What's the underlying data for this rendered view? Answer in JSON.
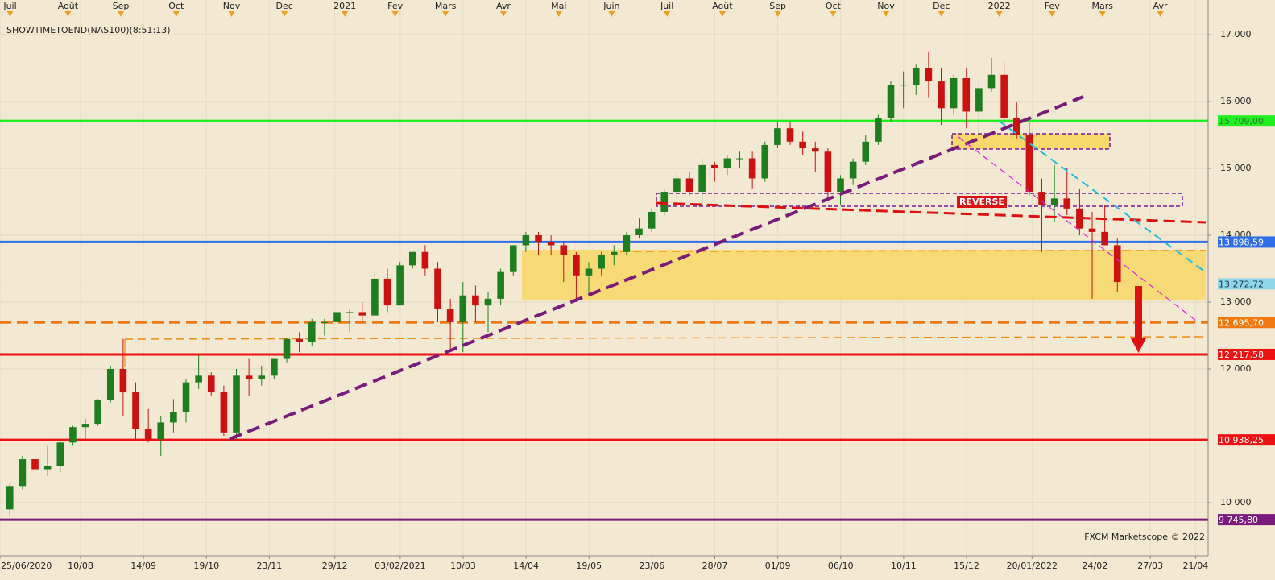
{
  "chart_data": {
    "type": "candlestick",
    "title": "SHOWTIMETOEND(NAS100)(8:51:13)",
    "credit": "FXCM Marketscope © 2022",
    "annotation": "REVERSE",
    "xlim": [
      "25/06/2020",
      "28/04/2022"
    ],
    "ylim": [
      9205,
      17518
    ],
    "yticks": [
      {
        "value": 17000,
        "label": "17 000"
      },
      {
        "value": 16000,
        "label": "16 000"
      },
      {
        "value": 15000,
        "label": "15 000"
      },
      {
        "value": 14000,
        "label": "14 000"
      },
      {
        "value": 13000,
        "label": "13 000"
      },
      {
        "value": 12000,
        "label": "12 000"
      },
      {
        "value": 10000,
        "label": "10 000"
      }
    ],
    "xticks": [
      {
        "value": "25/06/2020",
        "label": "25/06/2020"
      },
      {
        "value": "10/08/2020",
        "label": "10/08"
      },
      {
        "value": "14/09/2020",
        "label": "14/09"
      },
      {
        "value": "19/10/2020",
        "label": "19/10"
      },
      {
        "value": "23/11/2020",
        "label": "23/11"
      },
      {
        "value": "29/12/2020",
        "label": "29/12"
      },
      {
        "value": "03/02/2021",
        "label": "03/02/2021"
      },
      {
        "value": "10/03/2021",
        "label": "10/03"
      },
      {
        "value": "14/04/2021",
        "label": "14/04"
      },
      {
        "value": "19/05/2021",
        "label": "19/05"
      },
      {
        "value": "23/06/2021",
        "label": "23/06"
      },
      {
        "value": "28/07/2021",
        "label": "28/07"
      },
      {
        "value": "01/09/2021",
        "label": "01/09"
      },
      {
        "value": "06/10/2021",
        "label": "06/10"
      },
      {
        "value": "10/11/2021",
        "label": "10/11"
      },
      {
        "value": "15/12/2021",
        "label": "15/12"
      },
      {
        "value": "20/01/2022",
        "label": "20/01/2022"
      },
      {
        "value": "24/02/2022",
        "label": "24/02"
      },
      {
        "value": "27/03/2022",
        "label": "27/03"
      },
      {
        "value": "21/04/2022",
        "label": "21/04"
      }
    ],
    "top_ticks": [
      {
        "value": "01/07/2020",
        "label": "Juil"
      },
      {
        "value": "03/08/2020",
        "label": "Août"
      },
      {
        "value": "01/09/2020",
        "label": "Sep"
      },
      {
        "value": "01/10/2020",
        "label": "Oct"
      },
      {
        "value": "02/11/2020",
        "label": "Nov"
      },
      {
        "value": "01/12/2020",
        "label": "Dec"
      },
      {
        "value": "04/01/2021",
        "label": "2021"
      },
      {
        "value": "01/02/2021",
        "label": "Fev"
      },
      {
        "value": "01/03/2021",
        "label": "Mars"
      },
      {
        "value": "01/04/2021",
        "label": "Avr"
      },
      {
        "value": "03/05/2021",
        "label": "Mai"
      },
      {
        "value": "01/06/2021",
        "label": "Juin"
      },
      {
        "value": "01/07/2021",
        "label": "Juil"
      },
      {
        "value": "02/08/2021",
        "label": "Août"
      },
      {
        "value": "01/09/2021",
        "label": "Sep"
      },
      {
        "value": "01/10/2021",
        "label": "Oct"
      },
      {
        "value": "01/11/2021",
        "label": "Nov"
      },
      {
        "value": "01/12/2021",
        "label": "Dec"
      },
      {
        "value": "03/01/2022",
        "label": "2022"
      },
      {
        "value": "01/02/2022",
        "label": "Fev"
      },
      {
        "value": "01/03/2022",
        "label": "Mars"
      },
      {
        "value": "01/04/2022",
        "label": "Avr"
      }
    ],
    "levels": [
      {
        "value": 15709,
        "label": "15 709,00",
        "color": "#22ee22",
        "text_color": "#2a7a2a",
        "style": "solid"
      },
      {
        "value": 13898.59,
        "label": "13 898,59",
        "color": "#2f6ee8",
        "text_color": "#ffffff",
        "style": "solid"
      },
      {
        "value": 13272.72,
        "label": "13 272,72",
        "color": "#8fd6e8",
        "text_color": "#1a3a5a",
        "style": "dotted"
      },
      {
        "value": 12695.7,
        "label": "12 695,70",
        "color": "#f07a10",
        "text_color": "#ffffff",
        "style": "dashed"
      },
      {
        "value": 12217.58,
        "label": "12 217,58",
        "color": "#ee1111",
        "text_color": "#ffffff",
        "style": "solid"
      },
      {
        "value": 10938.25,
        "label": "10 938,25",
        "color": "#ee1111",
        "text_color": "#ffffff",
        "style": "solid"
      },
      {
        "value": 9745.8,
        "label": "9 745,80",
        "color": "#7a1a7a",
        "text_color": "#ffffff",
        "style": "solid"
      }
    ],
    "up_color": "#1e7d1e",
    "down_color": "#cc1111",
    "x": [
      "29/06/2020",
      "06/07/2020",
      "13/07/2020",
      "20/07/2020",
      "27/07/2020",
      "03/08/2020",
      "10/08/2020",
      "17/08/2020",
      "24/08/2020",
      "31/08/2020",
      "07/09/2020",
      "14/09/2020",
      "21/09/2020",
      "28/09/2020",
      "05/10/2020",
      "12/10/2020",
      "19/10/2020",
      "26/10/2020",
      "02/11/2020",
      "09/11/2020",
      "16/11/2020",
      "23/11/2020",
      "30/11/2020",
      "07/12/2020",
      "14/12/2020",
      "21/12/2020",
      "28/12/2020",
      "04/01/2021",
      "11/01/2021",
      "18/01/2021",
      "25/01/2021",
      "01/02/2021",
      "08/02/2021",
      "15/02/2021",
      "22/02/2021",
      "01/03/2021",
      "08/03/2021",
      "15/03/2021",
      "22/03/2021",
      "29/03/2021",
      "05/04/2021",
      "12/04/2021",
      "19/04/2021",
      "26/04/2021",
      "03/05/2021",
      "10/05/2021",
      "17/05/2021",
      "24/05/2021",
      "31/05/2021",
      "07/06/2021",
      "14/06/2021",
      "21/06/2021",
      "28/06/2021",
      "05/07/2021",
      "12/07/2021",
      "19/07/2021",
      "26/07/2021",
      "02/08/2021",
      "09/08/2021",
      "16/08/2021",
      "23/08/2021",
      "30/08/2021",
      "06/09/2021",
      "13/09/2021",
      "20/09/2021",
      "27/09/2021",
      "04/10/2021",
      "11/10/2021",
      "18/10/2021",
      "25/10/2021",
      "01/11/2021",
      "08/11/2021",
      "15/11/2021",
      "22/11/2021",
      "29/11/2021",
      "06/12/2021",
      "13/12/2021",
      "20/12/2021",
      "27/12/2021",
      "03/01/2022",
      "10/01/2022",
      "17/01/2022",
      "24/01/2022",
      "31/01/2022",
      "07/02/2022",
      "14/02/2022",
      "21/02/2022",
      "28/02/2022",
      "07/03/2022"
    ],
    "open": [
      9900,
      10250,
      10650,
      10500,
      10550,
      10900,
      11130,
      11180,
      11530,
      12000,
      11650,
      11100,
      10950,
      11200,
      11350,
      11800,
      11900,
      11650,
      11050,
      11900,
      11850,
      11900,
      12150,
      12450,
      12400,
      12700,
      12700,
      12850,
      12850,
      12800,
      13350,
      12950,
      13550,
      13750,
      13500,
      12900,
      12700,
      13100,
      12950,
      13050,
      13450,
      13850,
      14000,
      13900,
      13850,
      13700,
      13400,
      13500,
      13700,
      13750,
      14000,
      14100,
      14350,
      14650,
      14850,
      14650,
      15050,
      15000,
      15150,
      15150,
      14850,
      15350,
      15600,
      15400,
      15300,
      15250,
      14650,
      14850,
      15100,
      15400,
      15750,
      16250,
      16250,
      16500,
      16300,
      15900,
      16350,
      15850,
      16200,
      16400,
      15750,
      15500,
      14650,
      14450,
      14550,
      14400,
      14100,
      14050,
      13850
    ],
    "high": [
      10300,
      10700,
      10950,
      10850,
      10950,
      11150,
      11250,
      11550,
      12050,
      12450,
      11800,
      11400,
      11300,
      11550,
      11850,
      12200,
      11950,
      11750,
      12000,
      12150,
      12050,
      12150,
      12450,
      12550,
      12750,
      12750,
      12900,
      12900,
      13000,
      13450,
      13500,
      13600,
      13750,
      13850,
      13600,
      13050,
      13300,
      13250,
      13150,
      13500,
      13850,
      14050,
      14050,
      14000,
      13900,
      13750,
      13600,
      13750,
      13850,
      14050,
      14250,
      14400,
      14700,
      14950,
      14950,
      15150,
      15100,
      15200,
      15250,
      15250,
      15400,
      15700,
      15700,
      15550,
      15400,
      15300,
      14900,
      15150,
      15500,
      15800,
      16300,
      16450,
      16550,
      16750,
      16500,
      16400,
      16500,
      16300,
      16650,
      16600,
      16000,
      15700,
      14850,
      15050,
      15000,
      14700,
      14350,
      14450,
      13950
    ],
    "low": [
      9800,
      10200,
      10400,
      10400,
      10450,
      10850,
      10950,
      11150,
      11500,
      11300,
      10950,
      10900,
      10700,
      11050,
      11200,
      11700,
      11600,
      11000,
      10950,
      11600,
      11750,
      11850,
      12100,
      12250,
      12350,
      12500,
      12650,
      12550,
      12700,
      12800,
      12850,
      12950,
      13500,
      13400,
      12700,
      12300,
      12250,
      12700,
      12550,
      12950,
      13400,
      13750,
      13700,
      13700,
      13300,
      13000,
      13100,
      13400,
      13550,
      13700,
      13950,
      14050,
      14300,
      14550,
      14600,
      14450,
      14800,
      14900,
      15000,
      14700,
      14800,
      15300,
      15350,
      15200,
      14950,
      14550,
      14450,
      14750,
      15050,
      15350,
      15700,
      15900,
      16100,
      16050,
      15650,
      15800,
      15600,
      15500,
      16150,
      15650,
      15450,
      14600,
      13750,
      14200,
      14300,
      14000,
      13050,
      13850,
      13150
    ],
    "close": [
      10250,
      10650,
      10500,
      10550,
      10900,
      11130,
      11180,
      11530,
      12000,
      11650,
      11100,
      10950,
      11200,
      11350,
      11800,
      11900,
      11650,
      11050,
      11900,
      11850,
      11900,
      12150,
      12450,
      12400,
      12700,
      12700,
      12850,
      12850,
      12800,
      13350,
      12950,
      13550,
      13750,
      13500,
      12900,
      12700,
      13100,
      12950,
      13050,
      13450,
      13850,
      14000,
      13900,
      13850,
      13700,
      13400,
      13500,
      13700,
      13750,
      14000,
      14100,
      14350,
      14650,
      14850,
      14650,
      15050,
      15000,
      15150,
      15150,
      14850,
      15350,
      15600,
      15400,
      15300,
      15250,
      14650,
      14850,
      15100,
      15400,
      15750,
      16250,
      16250,
      16500,
      16300,
      15900,
      16350,
      15850,
      16200,
      16400,
      15750,
      15500,
      14650,
      14450,
      14550,
      14400,
      14100,
      14050,
      13850,
      13300
    ]
  }
}
